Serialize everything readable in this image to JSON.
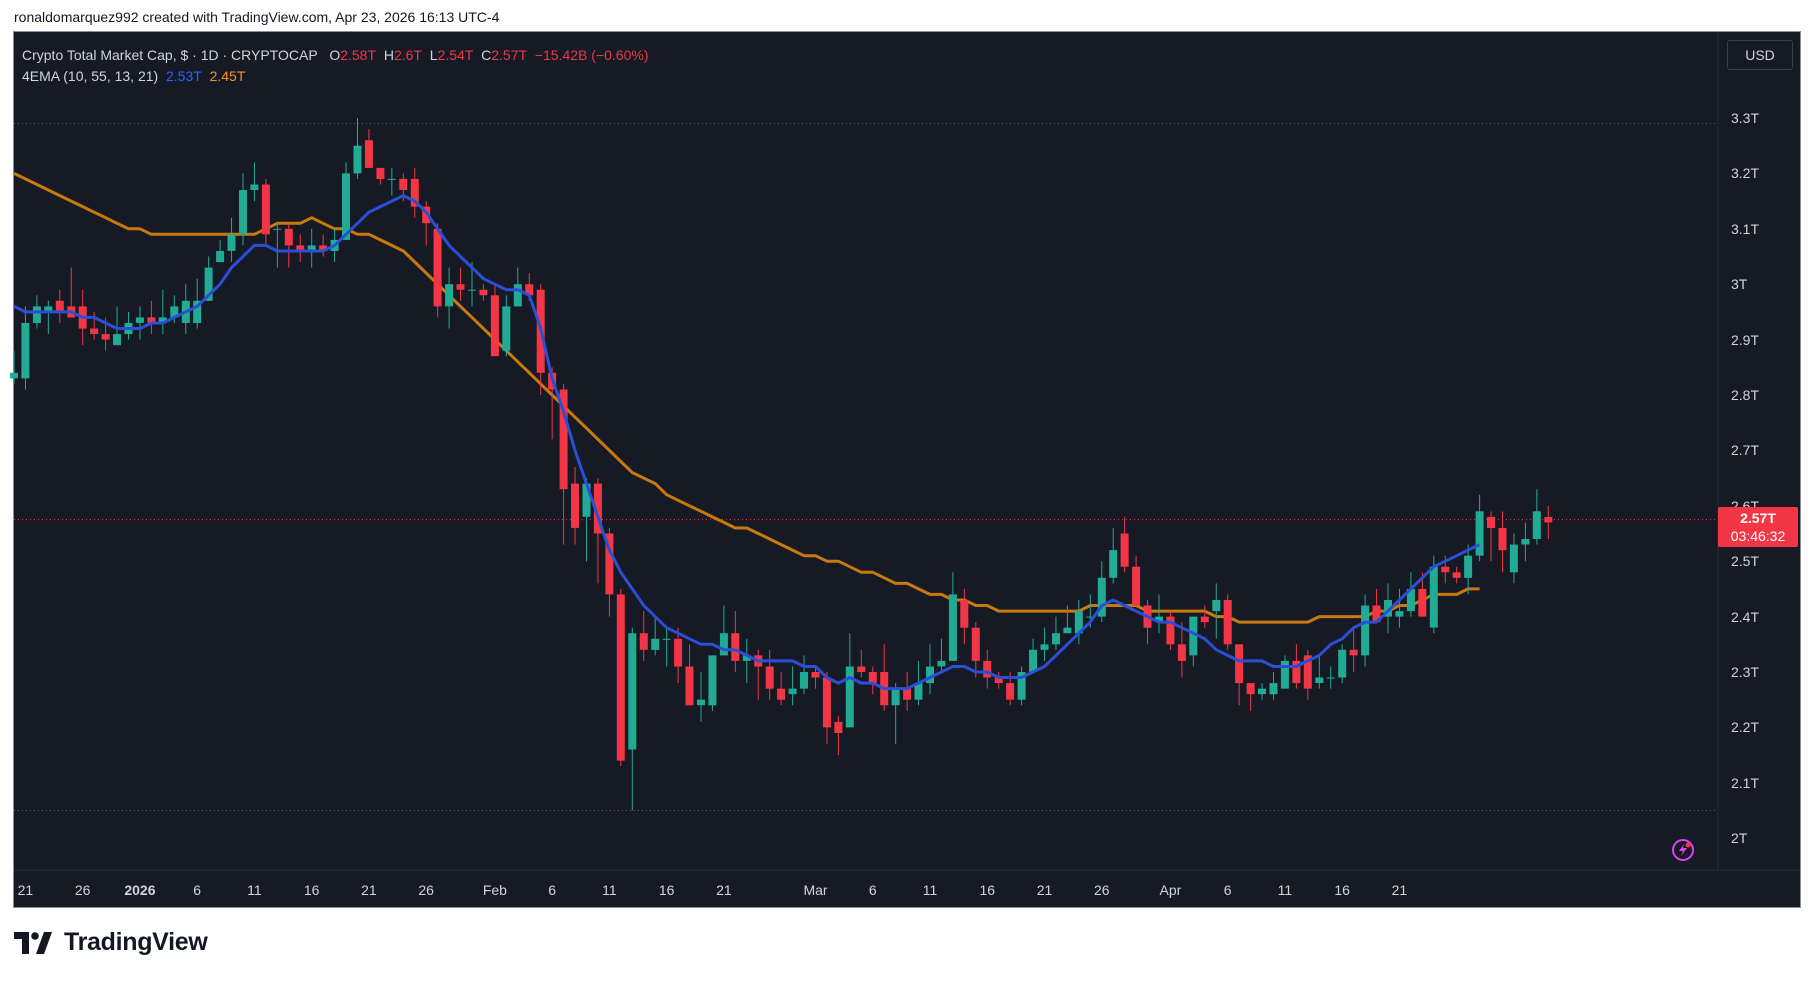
{
  "header": {
    "created_by": "ronaldomarquez992 created with TradingView.com, Apr 23, 2026 16:13 UTC-4"
  },
  "legend": {
    "symbol": "Crypto Total Market Cap, $ · 1D · CRYPTOCAP",
    "o_label": "O",
    "o_value": "2.58T",
    "h_label": "H",
    "h_value": "2.6T",
    "l_label": "L",
    "l_value": "2.54T",
    "c_label": "C",
    "c_value": "2.57T",
    "change": "−15.42B (−0.60%)",
    "indicator": "4EMA (10, 55, 13, 21)",
    "ema_fast": "2.53T",
    "ema_slow": "2.45T"
  },
  "currency_button": "USD",
  "price_tag": {
    "price": "2.57T",
    "countdown": "03:46:32"
  },
  "logo": {
    "word": "TradingView"
  },
  "colors": {
    "up": "#22ab94",
    "down": "#f23645",
    "ema_fast": "#2a4fd6",
    "ema_slow": "#c8790d",
    "background": "#161a25",
    "grid_dotted": "#5d606b"
  },
  "icons": [
    "tradingview-logo-icon",
    "lightning-icon"
  ],
  "chart_data": {
    "type": "candlestick",
    "title": "Crypto Total Market Cap, $ · 1D · CRYPTOCAP",
    "ylim": [
      1.95,
      3.4
    ],
    "y_ticks": [
      "3.3T",
      "3.2T",
      "3.1T",
      "3T",
      "2.9T",
      "2.8T",
      "2.7T",
      "2.6T",
      "2.5T",
      "2.4T",
      "2.3T",
      "2.2T",
      "2.1T",
      "2T"
    ],
    "y_tick_values": [
      3.3,
      3.2,
      3.1,
      3.0,
      2.9,
      2.8,
      2.7,
      2.6,
      2.5,
      2.4,
      2.3,
      2.2,
      2.1,
      2.0
    ],
    "x_ticks": [
      {
        "label": "21",
        "index": 1,
        "bold": false
      },
      {
        "label": "26",
        "index": 6,
        "bold": false
      },
      {
        "label": "2026",
        "index": 11,
        "bold": true
      },
      {
        "label": "6",
        "index": 16,
        "bold": false
      },
      {
        "label": "11",
        "index": 21,
        "bold": false
      },
      {
        "label": "16",
        "index": 26,
        "bold": false
      },
      {
        "label": "21",
        "index": 31,
        "bold": false
      },
      {
        "label": "26",
        "index": 36,
        "bold": false
      },
      {
        "label": "Feb",
        "index": 42,
        "bold": false
      },
      {
        "label": "6",
        "index": 47,
        "bold": false
      },
      {
        "label": "11",
        "index": 52,
        "bold": false
      },
      {
        "label": "16",
        "index": 57,
        "bold": false
      },
      {
        "label": "21",
        "index": 62,
        "bold": false
      },
      {
        "label": "Mar",
        "index": 70,
        "bold": false
      },
      {
        "label": "6",
        "index": 75,
        "bold": false
      },
      {
        "label": "11",
        "index": 80,
        "bold": false
      },
      {
        "label": "16",
        "index": 85,
        "bold": false
      },
      {
        "label": "21",
        "index": 90,
        "bold": false
      },
      {
        "label": "26",
        "index": 95,
        "bold": false
      },
      {
        "label": "Apr",
        "index": 101,
        "bold": false
      },
      {
        "label": "6",
        "index": 106,
        "bold": false
      },
      {
        "label": "11",
        "index": 111,
        "bold": false
      },
      {
        "label": "16",
        "index": 116,
        "bold": false
      },
      {
        "label": "21",
        "index": 121,
        "bold": false
      }
    ],
    "reference_lines": [
      3.29,
      2.05
    ],
    "last_price": 2.575,
    "candles": [
      [
        2.83,
        2.84,
        2.82,
        2.88
      ],
      [
        2.83,
        2.93,
        2.81,
        2.96
      ],
      [
        2.93,
        2.96,
        2.92,
        2.98
      ],
      [
        2.95,
        2.96,
        2.91,
        2.97
      ],
      [
        2.97,
        2.95,
        2.93,
        2.99
      ],
      [
        2.96,
        2.94,
        2.94,
        3.03
      ],
      [
        2.96,
        2.92,
        2.89,
        2.99
      ],
      [
        2.92,
        2.91,
        2.9,
        2.95
      ],
      [
        2.91,
        2.9,
        2.88,
        2.94
      ],
      [
        2.89,
        2.91,
        2.89,
        2.96
      ],
      [
        2.91,
        2.93,
        2.9,
        2.95
      ],
      [
        2.93,
        2.94,
        2.9,
        2.96
      ],
      [
        2.94,
        2.93,
        2.91,
        2.97
      ],
      [
        2.93,
        2.94,
        2.91,
        2.99
      ],
      [
        2.94,
        2.96,
        2.93,
        2.98
      ],
      [
        2.93,
        2.97,
        2.91,
        3.0
      ],
      [
        2.93,
        2.97,
        2.92,
        3.01
      ],
      [
        2.97,
        3.03,
        2.97,
        3.05
      ],
      [
        3.04,
        3.06,
        3.04,
        3.08
      ],
      [
        3.06,
        3.09,
        3.04,
        3.12
      ],
      [
        3.09,
        3.17,
        3.07,
        3.2
      ],
      [
        3.17,
        3.18,
        3.15,
        3.22
      ],
      [
        3.18,
        3.09,
        3.07,
        3.19
      ],
      [
        3.1,
        3.1,
        3.03,
        3.11
      ],
      [
        3.1,
        3.07,
        3.03,
        3.11
      ],
      [
        3.07,
        3.06,
        3.04,
        3.09
      ],
      [
        3.06,
        3.07,
        3.03,
        3.1
      ],
      [
        3.07,
        3.06,
        3.05,
        3.09
      ],
      [
        3.06,
        3.08,
        3.04,
        3.1
      ],
      [
        3.08,
        3.2,
        3.08,
        3.22
      ],
      [
        3.2,
        3.25,
        3.19,
        3.3
      ],
      [
        3.26,
        3.21,
        3.21,
        3.28
      ],
      [
        3.21,
        3.19,
        3.18,
        3.21
      ],
      [
        3.19,
        3.19,
        3.16,
        3.21
      ],
      [
        3.19,
        3.17,
        3.15,
        3.2
      ],
      [
        3.19,
        3.14,
        3.12,
        3.21
      ],
      [
        3.14,
        3.11,
        3.07,
        3.15
      ],
      [
        3.1,
        2.96,
        2.94,
        3.11
      ],
      [
        2.96,
        3.0,
        2.92,
        3.03
      ],
      [
        3.0,
        2.99,
        2.97,
        3.03
      ],
      [
        2.99,
        2.99,
        2.96,
        3.04
      ],
      [
        2.99,
        2.98,
        2.97,
        3.0
      ],
      [
        2.98,
        2.87,
        2.87,
        3.0
      ],
      [
        2.88,
        2.96,
        2.87,
        2.98
      ],
      [
        2.96,
        3.0,
        2.96,
        3.03
      ],
      [
        3.0,
        2.98,
        2.97,
        3.02
      ],
      [
        2.99,
        2.84,
        2.8,
        3.0
      ],
      [
        2.84,
        2.81,
        2.72,
        2.85
      ],
      [
        2.81,
        2.63,
        2.53,
        2.82
      ],
      [
        2.64,
        2.56,
        2.53,
        2.67
      ],
      [
        2.58,
        2.64,
        2.5,
        2.65
      ],
      [
        2.64,
        2.55,
        2.46,
        2.65
      ],
      [
        2.55,
        2.44,
        2.4,
        2.56
      ],
      [
        2.44,
        2.14,
        2.13,
        2.45
      ],
      [
        2.16,
        2.37,
        2.05,
        2.38
      ],
      [
        2.37,
        2.34,
        2.32,
        2.41
      ],
      [
        2.34,
        2.36,
        2.33,
        2.4
      ],
      [
        2.36,
        2.36,
        2.31,
        2.38
      ],
      [
        2.36,
        2.31,
        2.28,
        2.38
      ],
      [
        2.31,
        2.24,
        2.24,
        2.35
      ],
      [
        2.24,
        2.25,
        2.21,
        2.3
      ],
      [
        2.24,
        2.33,
        2.23,
        2.33
      ],
      [
        2.33,
        2.37,
        2.33,
        2.42
      ],
      [
        2.37,
        2.32,
        2.3,
        2.41
      ],
      [
        2.32,
        2.33,
        2.28,
        2.36
      ],
      [
        2.33,
        2.31,
        2.25,
        2.34
      ],
      [
        2.31,
        2.27,
        2.25,
        2.34
      ],
      [
        2.27,
        2.25,
        2.24,
        2.3
      ],
      [
        2.26,
        2.27,
        2.24,
        2.31
      ],
      [
        2.27,
        2.3,
        2.26,
        2.33
      ],
      [
        2.3,
        2.29,
        2.27,
        2.31
      ],
      [
        2.29,
        2.2,
        2.17,
        2.3
      ],
      [
        2.21,
        2.19,
        2.15,
        2.22
      ],
      [
        2.2,
        2.31,
        2.2,
        2.37
      ],
      [
        2.31,
        2.3,
        2.29,
        2.34
      ],
      [
        2.3,
        2.28,
        2.26,
        2.31
      ],
      [
        2.3,
        2.24,
        2.23,
        2.35
      ],
      [
        2.24,
        2.27,
        2.17,
        2.28
      ],
      [
        2.27,
        2.25,
        2.23,
        2.3
      ],
      [
        2.25,
        2.28,
        2.24,
        2.32
      ],
      [
        2.28,
        2.31,
        2.26,
        2.35
      ],
      [
        2.31,
        2.32,
        2.3,
        2.36
      ],
      [
        2.32,
        2.44,
        2.32,
        2.48
      ],
      [
        2.43,
        2.38,
        2.35,
        2.45
      ],
      [
        2.38,
        2.32,
        2.29,
        2.39
      ],
      [
        2.32,
        2.29,
        2.27,
        2.34
      ],
      [
        2.29,
        2.28,
        2.27,
        2.3
      ],
      [
        2.28,
        2.25,
        2.24,
        2.3
      ],
      [
        2.25,
        2.3,
        2.24,
        2.31
      ],
      [
        2.3,
        2.34,
        2.3,
        2.36
      ],
      [
        2.34,
        2.35,
        2.32,
        2.38
      ],
      [
        2.35,
        2.37,
        2.34,
        2.4
      ],
      [
        2.37,
        2.38,
        2.37,
        2.42
      ],
      [
        2.37,
        2.41,
        2.35,
        2.43
      ],
      [
        2.4,
        2.4,
        2.38,
        2.44
      ],
      [
        2.4,
        2.47,
        2.39,
        2.5
      ],
      [
        2.47,
        2.52,
        2.46,
        2.56
      ],
      [
        2.55,
        2.49,
        2.48,
        2.58
      ],
      [
        2.49,
        2.42,
        2.42,
        2.51
      ],
      [
        2.42,
        2.38,
        2.35,
        2.43
      ],
      [
        2.39,
        2.4,
        2.37,
        2.44
      ],
      [
        2.4,
        2.35,
        2.34,
        2.41
      ],
      [
        2.35,
        2.32,
        2.29,
        2.39
      ],
      [
        2.33,
        2.4,
        2.31,
        2.4
      ],
      [
        2.4,
        2.39,
        2.38,
        2.42
      ],
      [
        2.41,
        2.43,
        2.36,
        2.46
      ],
      [
        2.43,
        2.35,
        2.34,
        2.44
      ],
      [
        2.35,
        2.28,
        2.24,
        2.35
      ],
      [
        2.28,
        2.26,
        2.23,
        2.27
      ],
      [
        2.26,
        2.27,
        2.25,
        2.28
      ],
      [
        2.26,
        2.28,
        2.25,
        2.3
      ],
      [
        2.27,
        2.32,
        2.27,
        2.33
      ],
      [
        2.32,
        2.28,
        2.27,
        2.35
      ],
      [
        2.33,
        2.27,
        2.25,
        2.34
      ],
      [
        2.28,
        2.29,
        2.27,
        2.33
      ],
      [
        2.29,
        2.29,
        2.27,
        2.31
      ],
      [
        2.29,
        2.34,
        2.28,
        2.35
      ],
      [
        2.34,
        2.33,
        2.3,
        2.38
      ],
      [
        2.33,
        2.42,
        2.31,
        2.44
      ],
      [
        2.42,
        2.39,
        2.39,
        2.45
      ],
      [
        2.4,
        2.43,
        2.37,
        2.46
      ],
      [
        2.4,
        2.41,
        2.38,
        2.45
      ],
      [
        2.41,
        2.45,
        2.4,
        2.48
      ],
      [
        2.45,
        2.4,
        2.4,
        2.48
      ],
      [
        2.38,
        2.49,
        2.37,
        2.51
      ],
      [
        2.49,
        2.48,
        2.46,
        2.51
      ],
      [
        2.48,
        2.47,
        2.46,
        2.49
      ],
      [
        2.47,
        2.51,
        2.44,
        2.53
      ],
      [
        2.51,
        2.59,
        2.5,
        2.62
      ],
      [
        2.58,
        2.56,
        2.5,
        2.59
      ],
      [
        2.56,
        2.52,
        2.48,
        2.59
      ],
      [
        2.48,
        2.53,
        2.46,
        2.55
      ],
      [
        2.53,
        2.54,
        2.5,
        2.57
      ],
      [
        2.54,
        2.59,
        2.53,
        2.63
      ],
      [
        2.58,
        2.57,
        2.54,
        2.6
      ]
    ],
    "ema_fast": [
      2.96,
      2.95,
      2.95,
      2.95,
      2.95,
      2.95,
      2.94,
      2.94,
      2.93,
      2.92,
      2.92,
      2.92,
      2.93,
      2.93,
      2.94,
      2.95,
      2.96,
      2.98,
      3.0,
      3.03,
      3.05,
      3.07,
      3.07,
      3.06,
      3.06,
      3.06,
      3.06,
      3.06,
      3.07,
      3.09,
      3.11,
      3.13,
      3.14,
      3.15,
      3.16,
      3.15,
      3.13,
      3.1,
      3.07,
      3.05,
      3.03,
      3.01,
      3.0,
      2.99,
      2.99,
      2.98,
      2.92,
      2.83,
      2.77,
      2.7,
      2.64,
      2.58,
      2.52,
      2.48,
      2.45,
      2.42,
      2.4,
      2.38,
      2.37,
      2.36,
      2.35,
      2.35,
      2.34,
      2.34,
      2.33,
      2.32,
      2.32,
      2.32,
      2.32,
      2.31,
      2.31,
      2.29,
      2.28,
      2.29,
      2.28,
      2.28,
      2.27,
      2.27,
      2.27,
      2.28,
      2.29,
      2.3,
      2.31,
      2.31,
      2.3,
      2.3,
      2.29,
      2.29,
      2.29,
      2.3,
      2.31,
      2.33,
      2.35,
      2.37,
      2.39,
      2.42,
      2.43,
      2.42,
      2.41,
      2.4,
      2.39,
      2.39,
      2.38,
      2.37,
      2.36,
      2.34,
      2.33,
      2.32,
      2.32,
      2.32,
      2.31,
      2.31,
      2.31,
      2.32,
      2.33,
      2.35,
      2.36,
      2.38,
      2.39,
      2.39,
      2.41,
      2.43,
      2.45,
      2.47,
      2.49,
      2.5,
      2.51,
      2.52,
      2.53
    ],
    "ema_slow": [
      3.2,
      3.19,
      3.18,
      3.17,
      3.16,
      3.15,
      3.14,
      3.13,
      3.12,
      3.11,
      3.1,
      3.1,
      3.09,
      3.09,
      3.09,
      3.09,
      3.09,
      3.09,
      3.09,
      3.09,
      3.09,
      3.09,
      3.1,
      3.11,
      3.11,
      3.11,
      3.12,
      3.11,
      3.1,
      3.1,
      3.09,
      3.09,
      3.08,
      3.07,
      3.06,
      3.04,
      3.02,
      3.0,
      2.98,
      2.96,
      2.94,
      2.92,
      2.9,
      2.88,
      2.86,
      2.84,
      2.82,
      2.8,
      2.78,
      2.76,
      2.74,
      2.72,
      2.7,
      2.68,
      2.66,
      2.65,
      2.64,
      2.62,
      2.61,
      2.6,
      2.59,
      2.58,
      2.57,
      2.56,
      2.56,
      2.55,
      2.54,
      2.53,
      2.52,
      2.51,
      2.51,
      2.5,
      2.5,
      2.49,
      2.48,
      2.48,
      2.47,
      2.46,
      2.46,
      2.45,
      2.44,
      2.44,
      2.43,
      2.43,
      2.42,
      2.42,
      2.41,
      2.41,
      2.41,
      2.41,
      2.41,
      2.41,
      2.41,
      2.41,
      2.42,
      2.42,
      2.42,
      2.42,
      2.42,
      2.41,
      2.41,
      2.41,
      2.41,
      2.41,
      2.41,
      2.4,
      2.4,
      2.39,
      2.39,
      2.39,
      2.39,
      2.39,
      2.39,
      2.39,
      2.4,
      2.4,
      2.4,
      2.4,
      2.4,
      2.41,
      2.41,
      2.42,
      2.42,
      2.43,
      2.44,
      2.44,
      2.44,
      2.45,
      2.45
    ]
  }
}
